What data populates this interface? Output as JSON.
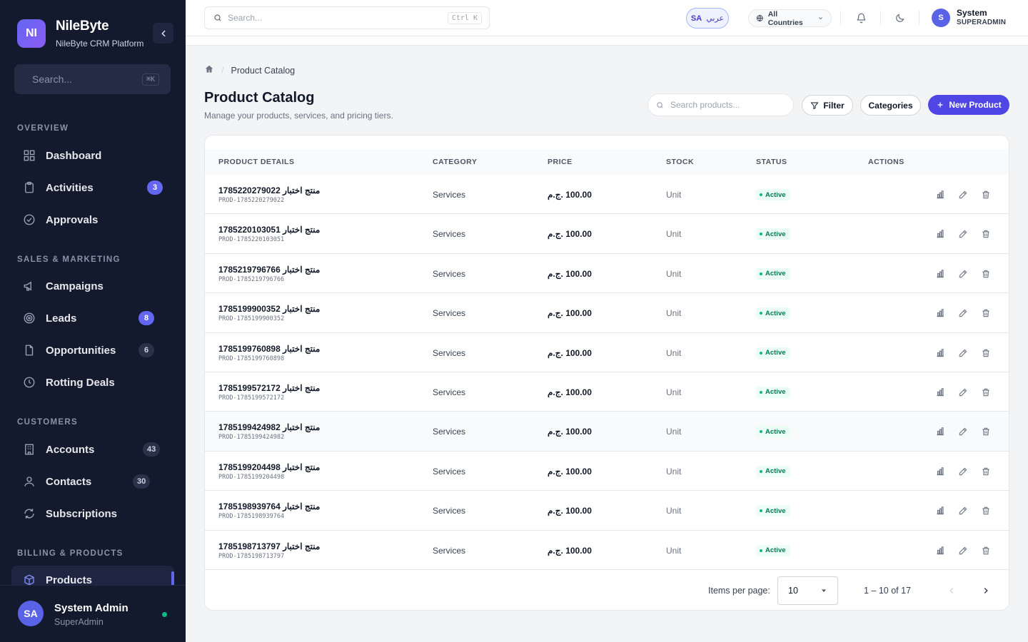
{
  "brand": {
    "logo_text": "NI",
    "name": "NileByte",
    "subtitle": "NileByte CRM Platform"
  },
  "sidebar": {
    "search_placeholder": "Search...",
    "search_shortcut": "⌘K",
    "sections": {
      "overview": "OVERVIEW",
      "sales": "SALES & MARKETING",
      "customers": "CUSTOMERS",
      "billing": "BILLING & PRODUCTS"
    },
    "items": {
      "dashboard": {
        "label": "Dashboard"
      },
      "activities": {
        "label": "Activities",
        "badge": "3"
      },
      "approvals": {
        "label": "Approvals"
      },
      "campaigns": {
        "label": "Campaigns"
      },
      "leads": {
        "label": "Leads",
        "badge": "8"
      },
      "opportunities": {
        "label": "Opportunities",
        "badge": "6"
      },
      "rotting": {
        "label": "Rotting Deals"
      },
      "accounts": {
        "label": "Accounts",
        "badge": "43"
      },
      "contacts": {
        "label": "Contacts",
        "badge": "30"
      },
      "subscriptions": {
        "label": "Subscriptions"
      },
      "products": {
        "label": "Products"
      }
    },
    "user": {
      "initials": "SA",
      "name": "System Admin",
      "role": "SuperAdmin"
    }
  },
  "topbar": {
    "search_placeholder": "Search...",
    "search_shortcut": "Ctrl K",
    "lang_code": "SA",
    "lang_label": "عربي",
    "country_label": "All Countries",
    "user_initial": "S",
    "user_name": "System",
    "user_role": "SUPERADMIN"
  },
  "page": {
    "breadcrumb_current": "Product Catalog",
    "title": "Product Catalog",
    "subtitle": "Manage your products, services, and pricing tiers.",
    "search_placeholder": "Search products...",
    "filter_label": "Filter",
    "categories_label": "Categories",
    "new_label": "New Product"
  },
  "table": {
    "headers": {
      "details": "PRODUCT DETAILS",
      "category": "CATEGORY",
      "price": "PRICE",
      "stock": "STOCK",
      "status": "STATUS",
      "actions": "ACTIONS"
    },
    "rows": [
      {
        "name": "منتج اختبار 1785220279022",
        "code": "PROD-1785220279022",
        "category": "Services",
        "price": "100.00 .ج.م",
        "stock": "Unit",
        "status": "Active"
      },
      {
        "name": "منتج اختبار 1785220103051",
        "code": "PROD-1785220103051",
        "category": "Services",
        "price": "100.00 .ج.م",
        "stock": "Unit",
        "status": "Active"
      },
      {
        "name": "منتج اختبار 1785219796766",
        "code": "PROD-1785219796766",
        "category": "Services",
        "price": "100.00 .ج.م",
        "stock": "Unit",
        "status": "Active"
      },
      {
        "name": "منتج اختبار 1785199900352",
        "code": "PROD-1785199900352",
        "category": "Services",
        "price": "100.00 .ج.م",
        "stock": "Unit",
        "status": "Active"
      },
      {
        "name": "منتج اختبار 1785199760898",
        "code": "PROD-1785199760898",
        "category": "Services",
        "price": "100.00 .ج.م",
        "stock": "Unit",
        "status": "Active"
      },
      {
        "name": "منتج اختبار 1785199572172",
        "code": "PROD-1785199572172",
        "category": "Services",
        "price": "100.00 .ج.م",
        "stock": "Unit",
        "status": "Active"
      },
      {
        "name": "منتج اختبار 1785199424982",
        "code": "PROD-1785199424982",
        "category": "Services",
        "price": "100.00 .ج.م",
        "stock": "Unit",
        "status": "Active"
      },
      {
        "name": "منتج اختبار 1785199204498",
        "code": "PROD-1785199204498",
        "category": "Services",
        "price": "100.00 .ج.م",
        "stock": "Unit",
        "status": "Active"
      },
      {
        "name": "منتج اختبار 1785198939764",
        "code": "PROD-1785198939764",
        "category": "Services",
        "price": "100.00 .ج.م",
        "stock": "Unit",
        "status": "Active"
      },
      {
        "name": "منتج اختبار 1785198713797",
        "code": "PROD-1785198713797",
        "category": "Services",
        "price": "100.00 .ج.م",
        "stock": "Unit",
        "status": "Active"
      }
    ]
  },
  "pagination": {
    "items_per_page_label": "Items per page:",
    "per_page_value": "10",
    "range_label": "1 – 10 of 17"
  },
  "colors": {
    "accent": "#4f46e5",
    "sidebar_bg": "#131a2e",
    "active_green": "#10b981"
  },
  "icons": [
    "home-icon",
    "search-icon",
    "filter-icon",
    "plus-icon",
    "chart-icon",
    "edit-icon",
    "trash-icon",
    "bell-icon",
    "moon-icon",
    "globe-icon",
    "chevron-left-icon",
    "chevron-right-icon",
    "chevron-down-icon"
  ]
}
